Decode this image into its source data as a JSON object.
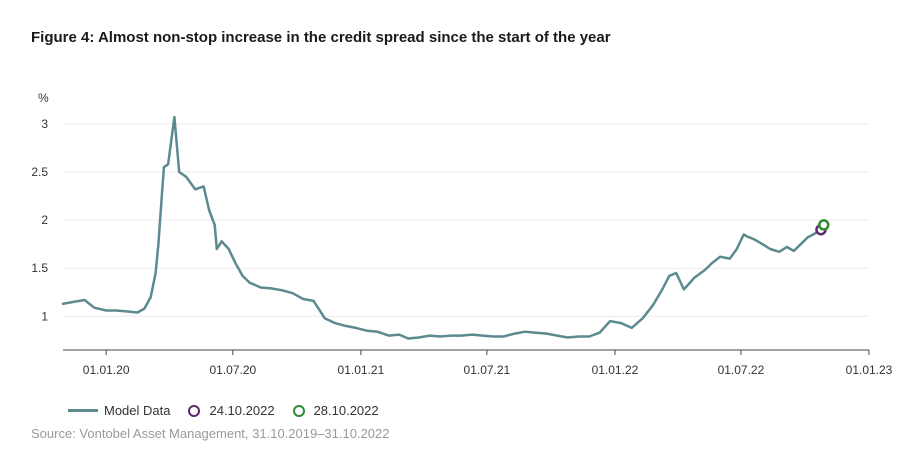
{
  "chart_data": {
    "type": "line",
    "title": "Figure 4: Almost non-stop increase in the credit spread since the start of the year",
    "ylabel": "%",
    "ylim": [
      0.65,
      3.3
    ],
    "yticks": [
      1,
      1.5,
      2,
      2.5,
      3
    ],
    "ytick_labels": [
      "1",
      "1.5",
      "2",
      "2.5",
      "3"
    ],
    "xlim": [
      "2019-10-31",
      "2023-01-01"
    ],
    "xticks": [
      "2020-01-01",
      "2020-07-01",
      "2021-01-01",
      "2021-07-01",
      "2022-01-01",
      "2022-07-01",
      "2023-01-01"
    ],
    "xtick_labels": [
      "01.01.20",
      "01.07.20",
      "01.01.21",
      "01.07.21",
      "01.01.22",
      "01.07.22",
      "01.01.23"
    ],
    "grid": true,
    "legend_position": "bottom-left",
    "series": [
      {
        "name": "Model Data",
        "color": "#5b8a8f",
        "x": [
          "2019-10-31",
          "2019-11-15",
          "2019-12-01",
          "2019-12-15",
          "2020-01-01",
          "2020-01-15",
          "2020-02-01",
          "2020-02-15",
          "2020-02-25",
          "2020-03-05",
          "2020-03-12",
          "2020-03-16",
          "2020-03-20",
          "2020-03-24",
          "2020-03-30",
          "2020-04-08",
          "2020-04-15",
          "2020-04-25",
          "2020-05-08",
          "2020-05-20",
          "2020-05-28",
          "2020-06-05",
          "2020-06-08",
          "2020-06-15",
          "2020-06-25",
          "2020-07-05",
          "2020-07-15",
          "2020-07-25",
          "2020-08-10",
          "2020-08-25",
          "2020-09-10",
          "2020-09-25",
          "2020-10-10",
          "2020-10-25",
          "2020-11-10",
          "2020-11-25",
          "2020-12-10",
          "2020-12-25",
          "2021-01-10",
          "2021-01-25",
          "2021-02-10",
          "2021-02-25",
          "2021-03-10",
          "2021-03-25",
          "2021-04-10",
          "2021-04-25",
          "2021-05-10",
          "2021-05-25",
          "2021-06-10",
          "2021-06-25",
          "2021-07-10",
          "2021-07-25",
          "2021-08-10",
          "2021-08-25",
          "2021-09-10",
          "2021-09-25",
          "2021-10-10",
          "2021-10-25",
          "2021-11-10",
          "2021-11-25",
          "2021-12-10",
          "2021-12-25",
          "2022-01-10",
          "2022-01-25",
          "2022-02-10",
          "2022-02-25",
          "2022-03-10",
          "2022-03-20",
          "2022-03-30",
          "2022-04-10",
          "2022-04-25",
          "2022-05-10",
          "2022-05-20",
          "2022-06-01",
          "2022-06-15",
          "2022-06-25",
          "2022-07-05",
          "2022-07-10",
          "2022-07-20",
          "2022-08-01",
          "2022-08-12",
          "2022-08-25",
          "2022-09-05",
          "2022-09-15",
          "2022-09-25",
          "2022-10-05",
          "2022-10-15",
          "2022-10-24",
          "2022-10-28"
        ],
        "values": [
          1.13,
          1.15,
          1.17,
          1.09,
          1.06,
          1.06,
          1.05,
          1.04,
          1.08,
          1.2,
          1.45,
          1.75,
          2.15,
          2.55,
          2.58,
          3.07,
          2.5,
          2.45,
          2.32,
          2.35,
          2.1,
          1.95,
          1.7,
          1.78,
          1.7,
          1.55,
          1.42,
          1.35,
          1.3,
          1.29,
          1.27,
          1.24,
          1.18,
          1.16,
          0.98,
          0.93,
          0.9,
          0.88,
          0.85,
          0.84,
          0.8,
          0.81,
          0.77,
          0.78,
          0.8,
          0.79,
          0.8,
          0.8,
          0.81,
          0.8,
          0.79,
          0.79,
          0.82,
          0.84,
          0.83,
          0.82,
          0.8,
          0.78,
          0.79,
          0.79,
          0.83,
          0.95,
          0.93,
          0.88,
          0.98,
          1.12,
          1.28,
          1.42,
          1.45,
          1.28,
          1.4,
          1.48,
          1.55,
          1.62,
          1.6,
          1.7,
          1.85,
          1.83,
          1.8,
          1.75,
          1.7,
          1.67,
          1.72,
          1.68,
          1.75,
          1.82,
          1.86,
          1.9,
          1.95
        ]
      }
    ],
    "markers": [
      {
        "name": "24.10.2022",
        "x": "2022-10-24",
        "value": 1.9,
        "color": "#5b2a6e"
      },
      {
        "name": "28.10.2022",
        "x": "2022-10-28",
        "value": 1.95,
        "color": "#2e8b2e"
      }
    ],
    "source": "Source: Vontobel Asset Management, 31.10.2019–31.10.2022"
  }
}
